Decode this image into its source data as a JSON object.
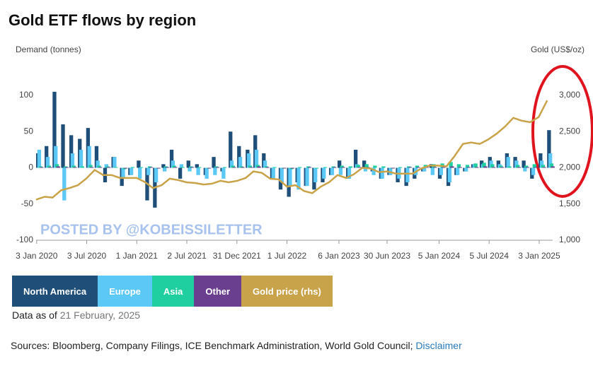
{
  "chart_data": {
    "type": "bar",
    "title": "Gold ETF flows by region",
    "y_label": "Demand (tonnes)",
    "y2_label": "Gold (US$/oz)",
    "watermark": "POSTED BY @KOBEISSILETTER",
    "as_of_label": "Data as of",
    "as_of_date": "21 February, 2025",
    "sources": "Sources: Bloomberg, Company Filings, ICE Benchmark Administration, World Gold Council;",
    "disclaimer": "Disclaimer",
    "grid": false,
    "xlim": [
      "2020-01-01",
      "2025-02-21"
    ],
    "xticks": [
      {
        "value": "2020-01-03",
        "label": "3 Jan 2020"
      },
      {
        "value": "2020-07-03",
        "label": "3 Jul 2020"
      },
      {
        "value": "2021-01-01",
        "label": "1 Jan 2021"
      },
      {
        "value": "2021-07-02",
        "label": "2 Jul 2021"
      },
      {
        "value": "2021-12-31",
        "label": "31 Dec 2021"
      },
      {
        "value": "2022-07-01",
        "label": "1 Jul 2022"
      },
      {
        "value": "2023-01-06",
        "label": "6 Jan 2023"
      },
      {
        "value": "2023-06-30",
        "label": "30 Jun 2023"
      },
      {
        "value": "2024-01-05",
        "label": "5 Jan 2024"
      },
      {
        "value": "2024-07-05",
        "label": "5 Jul 2024"
      },
      {
        "value": "2025-01-03",
        "label": "3 Jan 2025"
      }
    ],
    "ylim": [
      -100,
      110
    ],
    "yticks": [
      100,
      50,
      0,
      -50,
      -100
    ],
    "y2lim": [
      1000,
      3100
    ],
    "y2ticks": [
      {
        "value": 3000,
        "label": "3,000"
      },
      {
        "value": 2500,
        "label": "2,500"
      },
      {
        "value": 2000,
        "label": "2,000"
      },
      {
        "value": 1500,
        "label": "1,500"
      },
      {
        "value": 1000,
        "label": "1,000"
      }
    ],
    "x": [
      "2020-01",
      "2020-02",
      "2020-03",
      "2020-04",
      "2020-05",
      "2020-06",
      "2020-07",
      "2020-08",
      "2020-09",
      "2020-10",
      "2020-11",
      "2020-12",
      "2021-01",
      "2021-02",
      "2021-03",
      "2021-04",
      "2021-05",
      "2021-06",
      "2021-07",
      "2021-08",
      "2021-09",
      "2021-10",
      "2021-11",
      "2021-12",
      "2022-01",
      "2022-02",
      "2022-03",
      "2022-04",
      "2022-05",
      "2022-06",
      "2022-07",
      "2022-08",
      "2022-09",
      "2022-10",
      "2022-11",
      "2022-12",
      "2023-01",
      "2023-02",
      "2023-03",
      "2023-04",
      "2023-05",
      "2023-06",
      "2023-07",
      "2023-08",
      "2023-09",
      "2023-10",
      "2023-11",
      "2023-12",
      "2024-01",
      "2024-02",
      "2024-03",
      "2024-04",
      "2024-05",
      "2024-06",
      "2024-07",
      "2024-08",
      "2024-09",
      "2024-10",
      "2024-11",
      "2024-12",
      "2025-01",
      "2025-02"
    ],
    "series": [
      {
        "name": "North America",
        "color": "#1f4e79",
        "values": [
          20,
          30,
          105,
          60,
          45,
          40,
          55,
          30,
          -20,
          15,
          -25,
          -10,
          10,
          -45,
          -55,
          5,
          25,
          -15,
          10,
          5,
          -10,
          15,
          -5,
          50,
          30,
          25,
          45,
          20,
          -15,
          -30,
          -40,
          -20,
          -25,
          -30,
          -20,
          -10,
          10,
          -15,
          25,
          10,
          -5,
          -15,
          -10,
          -20,
          -25,
          -15,
          -5,
          5,
          -15,
          -25,
          -10,
          -5,
          5,
          10,
          15,
          10,
          20,
          15,
          10,
          -15,
          20,
          52
        ]
      },
      {
        "name": "Europe",
        "color": "#5bc8f5",
        "values": [
          25,
          15,
          30,
          -45,
          20,
          25,
          30,
          10,
          5,
          15,
          -15,
          -10,
          -15,
          -10,
          -20,
          -5,
          10,
          5,
          -5,
          -10,
          -15,
          -10,
          -15,
          10,
          15,
          20,
          25,
          10,
          -15,
          -20,
          -25,
          -30,
          -25,
          -20,
          -15,
          -10,
          -10,
          -15,
          5,
          -5,
          -10,
          -15,
          -10,
          -15,
          -20,
          -10,
          -5,
          -10,
          -10,
          -20,
          -10,
          -5,
          5,
          5,
          10,
          5,
          15,
          10,
          -5,
          -10,
          10,
          20
        ]
      },
      {
        "name": "Asia",
        "color": "#1fcf9f",
        "values": [
          2,
          3,
          5,
          2,
          3,
          2,
          4,
          3,
          2,
          1,
          -2,
          1,
          1,
          2,
          -1,
          2,
          3,
          1,
          2,
          1,
          -1,
          2,
          1,
          3,
          2,
          3,
          4,
          2,
          1,
          -1,
          -2,
          1,
          2,
          -1,
          1,
          2,
          3,
          2,
          4,
          5,
          3,
          2,
          -1,
          1,
          2,
          3,
          4,
          5,
          6,
          8,
          5,
          4,
          6,
          7,
          5,
          3,
          2,
          4,
          3,
          5,
          4,
          6
        ]
      },
      {
        "name": "Other",
        "color": "#6b3f8f",
        "values": [
          1,
          1,
          2,
          1,
          1,
          0,
          1,
          1,
          1,
          0,
          -1,
          0,
          0,
          1,
          -1,
          1,
          1,
          0,
          1,
          0,
          -1,
          1,
          0,
          1,
          1,
          1,
          2,
          1,
          0,
          -1,
          -1,
          0,
          1,
          0,
          0,
          1,
          1,
          0,
          1,
          1,
          0,
          0,
          -1,
          0,
          1,
          1,
          1,
          1,
          1,
          2,
          1,
          1,
          1,
          2,
          1,
          1,
          0,
          1,
          1,
          1,
          1,
          2
        ]
      },
      {
        "name": "Gold price (rhs)",
        "color": "#c9a34a",
        "axis": "y2",
        "values": [
          1560,
          1600,
          1590,
          1690,
          1720,
          1760,
          1850,
          1970,
          1900,
          1900,
          1860,
          1860,
          1860,
          1800,
          1720,
          1760,
          1850,
          1830,
          1800,
          1790,
          1770,
          1780,
          1820,
          1800,
          1820,
          1860,
          1950,
          1930,
          1850,
          1840,
          1740,
          1760,
          1680,
          1650,
          1740,
          1800,
          1900,
          1860,
          1910,
          2000,
          1990,
          1940,
          1950,
          1920,
          1920,
          1920,
          1990,
          2030,
          2030,
          2020,
          2160,
          2330,
          2350,
          2330,
          2390,
          2470,
          2570,
          2690,
          2650,
          2630,
          2700,
          2930
        ]
      }
    ]
  }
}
